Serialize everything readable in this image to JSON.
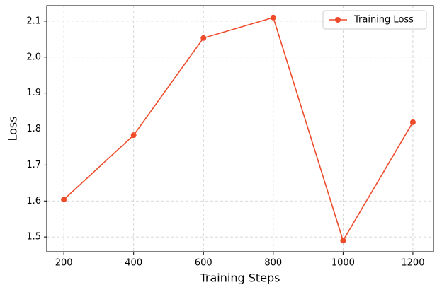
{
  "chart_data": {
    "type": "line",
    "xlabel": "Training Steps",
    "ylabel": "Loss",
    "x": [
      200,
      400,
      600,
      800,
      1000,
      1200
    ],
    "series": [
      {
        "name": "Training Loss",
        "color": "#ee4b2b",
        "values": [
          1.604,
          1.783,
          2.053,
          2.11,
          1.49,
          1.819
        ]
      }
    ],
    "xlim": [
      151,
      1259
    ],
    "xticks": [
      200,
      400,
      600,
      800,
      1000,
      1200
    ],
    "ylim": [
      1.459,
      2.143
    ],
    "yticks": [
      1.5,
      1.6,
      1.7,
      1.8,
      1.9,
      {
        "value": 2,
        "label": "2.0"
      },
      2.1
    ],
    "grid": true,
    "legend": "upper right"
  }
}
